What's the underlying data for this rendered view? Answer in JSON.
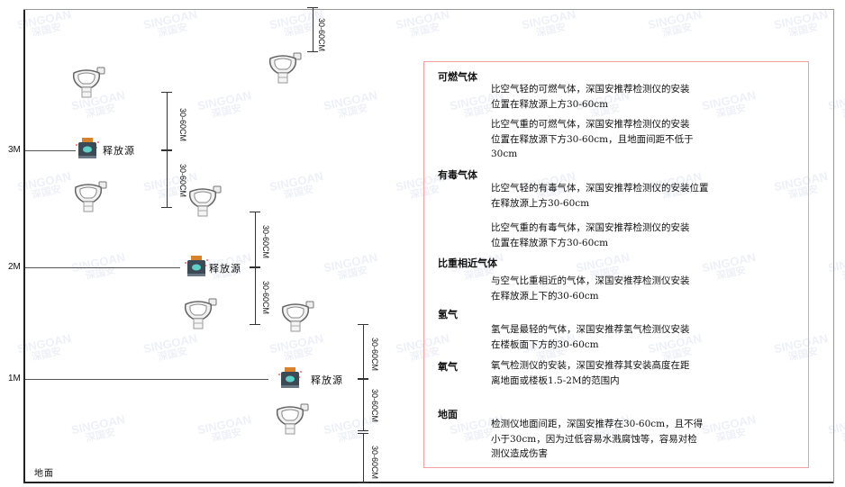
{
  "levels": [
    {
      "label": "3M"
    },
    {
      "label": "2M"
    },
    {
      "label": "1M"
    }
  ],
  "ground_label": "地面",
  "source_label": "释放源",
  "dimension_label": "30-60CM",
  "watermark": {
    "text": "SINGOAN",
    "subtext": "深国安"
  },
  "panel": {
    "sections": [
      {
        "heading": "可燃气体",
        "paragraphs": [
          [
            "比空气轻的可燃气体，深国安推荐检测仪的安装",
            "位置在释放源上方30-60cm"
          ],
          [
            "比空气重的可燃气体，深国安推荐检测仪的安装",
            "位置在释放源下方30-60cm，且地面间距不低于",
            "30cm"
          ]
        ]
      },
      {
        "heading": "有毒气体",
        "paragraphs": [
          [
            "比空气轻的有毒气体，深国安推荐检测仪的安装位置",
            "在释放源上方30-60cm"
          ],
          [
            "比空气重的有毒气体，深国安推荐检测仪的安装",
            "位置在释放源下方30-60cm"
          ]
        ]
      },
      {
        "heading": "比重相近气体",
        "paragraphs": [
          [
            "与空气比重相近的气体，深国安推荐检测仪安装",
            "在释放源上下的30-60cm"
          ]
        ]
      },
      {
        "heading": "氢气",
        "paragraphs": [
          [
            "氢气是最轻的气体，深国安推荐氢气检测仪安装",
            "在楼板面下方的30-60cm"
          ]
        ]
      },
      {
        "heading": "氧气",
        "paragraphs": [
          [
            "氧气检测仪的安装，深国安推荐其安装高度在距",
            "离地面或楼板1.5-2M的范围内"
          ]
        ]
      },
      {
        "heading": "地面",
        "paragraphs": [
          [
            "检测仪地面间距，深国安推荐在30-60cm，且不得",
            "小于30cm，因为过低容易水溅腐蚀等，容易对检",
            "测仪造成伤害"
          ]
        ]
      }
    ]
  },
  "colors": {
    "panel_border": "#f2a0a0",
    "source_body": "#3c4a56",
    "source_cap": "#d9822b",
    "source_face": "#5fd0c8"
  }
}
